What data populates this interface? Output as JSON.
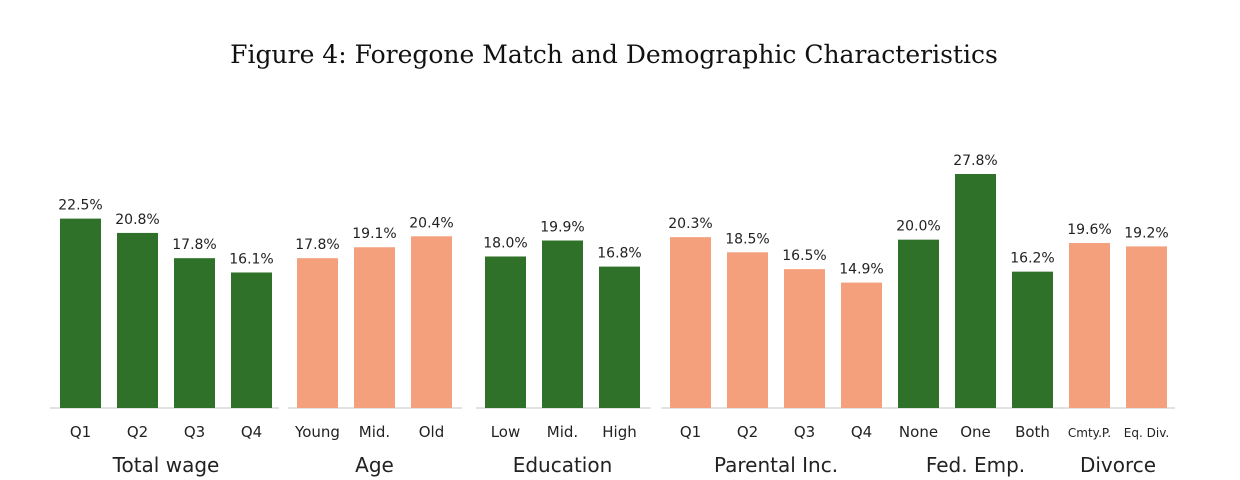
{
  "title": "Figure 4: Foregone Match and Demographic Characteristics",
  "colors": {
    "green": "#2f7128",
    "salmon": "#f4a07d",
    "axis": "#d9d9d9"
  },
  "chart_data": {
    "type": "bar",
    "ylim": [
      0,
      30
    ],
    "grid": false,
    "value_suffix": "%",
    "groups": [
      {
        "name": "Total wage",
        "color": "green",
        "categories": [
          "Q1",
          "Q2",
          "Q3",
          "Q4"
        ],
        "values": [
          22.5,
          20.8,
          17.8,
          16.1
        ]
      },
      {
        "name": "Age",
        "color": "salmon",
        "categories": [
          "Young",
          "Mid.",
          "Old"
        ],
        "values": [
          17.8,
          19.1,
          20.4
        ]
      },
      {
        "name": "Education",
        "color": "green",
        "categories": [
          "Low",
          "Mid.",
          "High"
        ],
        "values": [
          18.0,
          19.9,
          16.8
        ]
      },
      {
        "name": "Parental Inc.",
        "color": "salmon",
        "categories": [
          "Q1",
          "Q2",
          "Q3",
          "Q4"
        ],
        "values": [
          20.3,
          18.5,
          16.5,
          14.9
        ]
      },
      {
        "name": "Fed. Emp.",
        "color": "green",
        "categories": [
          "None",
          "One",
          "Both"
        ],
        "values": [
          20.0,
          27.8,
          16.2
        ]
      },
      {
        "name": "Divorce",
        "color": "salmon",
        "categories": [
          "Cmty.P.",
          "Eq. Div."
        ],
        "values": [
          19.6,
          19.2
        ]
      }
    ]
  }
}
